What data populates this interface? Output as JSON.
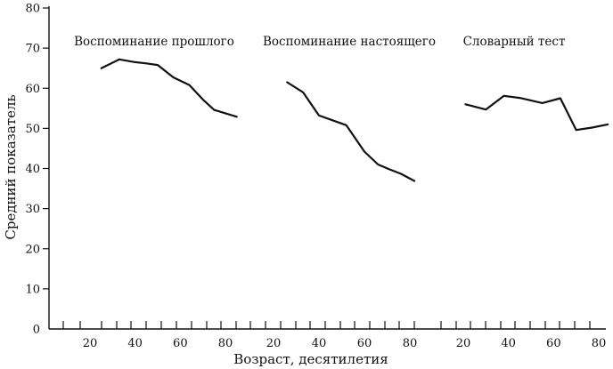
{
  "chart_data": {
    "type": "line",
    "ylabel": "Средний показатель",
    "xlabel": "Возраст, десятилетия",
    "ylim": [
      0,
      80
    ],
    "yticks": [
      0,
      10,
      20,
      30,
      40,
      50,
      60,
      70,
      80
    ],
    "grid": false,
    "panels": [
      {
        "title": "Воспоминание прошлого",
        "xticks": [
          20,
          40,
          60,
          80
        ],
        "series": [
          {
            "x": [
              25,
              33,
              40,
              45,
              50,
              57,
              64,
              70,
              75,
              85
            ],
            "y": [
              65,
              67.2,
              66.5,
              66.2,
              65.8,
              62.7,
              60.8,
              57.2,
              54.6,
              52.9
            ]
          }
        ]
      },
      {
        "title": "Воспоминание настоящего",
        "xticks": [
          20,
          40,
          60,
          80
        ],
        "series": [
          {
            "x": [
              26,
              33,
              40,
              46,
              52,
              60,
              66,
              71,
              76,
              82
            ],
            "y": [
              61.5,
              59,
              53.2,
              52,
              50.8,
              44.2,
              41,
              39.8,
              38.7,
              36.9
            ]
          }
        ]
      },
      {
        "title": "Словарный тест",
        "xticks": [
          20,
          40,
          60,
          80
        ],
        "series": [
          {
            "x": [
              21,
              30,
              38,
              45,
              55,
              63,
              70,
              77,
              84
            ],
            "y": [
              56,
              54.7,
              58.1,
              57.6,
              56.3,
              57.5,
              49.6,
              50.2,
              51
            ]
          }
        ]
      }
    ]
  }
}
